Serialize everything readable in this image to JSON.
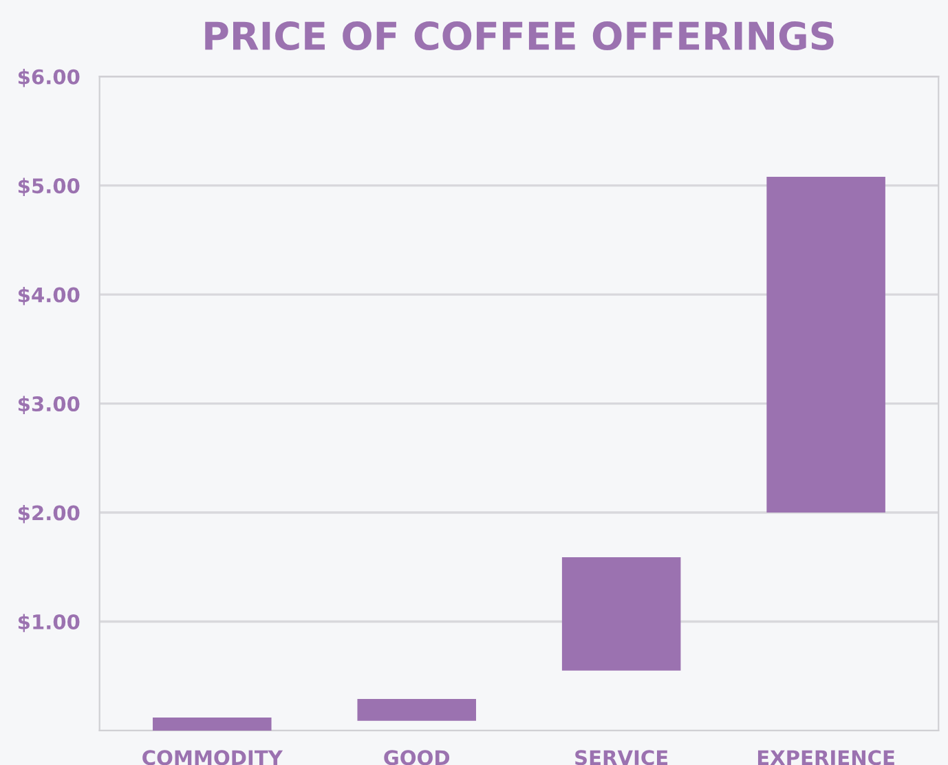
{
  "chart_data": {
    "type": "bar",
    "title": "PRICE OF COFFEE OFFERINGS",
    "categories": [
      "COMMODITY",
      "GOOD",
      "SERVICE",
      "EXPERIENCE"
    ],
    "values": [
      0.12,
      0.2,
      1.04,
      3.08
    ],
    "base": [
      0,
      0.09,
      0.55,
      2.0
    ],
    "color": "#9b72b0",
    "ylim": [
      0,
      6
    ],
    "yticks": [
      {
        "value": 1,
        "label": "$1.00"
      },
      {
        "value": 2,
        "label": "$2.00"
      },
      {
        "value": 3,
        "label": "$3.00"
      },
      {
        "value": 4,
        "label": "$4.00"
      },
      {
        "value": 5,
        "label": "$5.00"
      },
      {
        "value": 6,
        "label": "$6.00"
      }
    ],
    "grid": "y"
  }
}
